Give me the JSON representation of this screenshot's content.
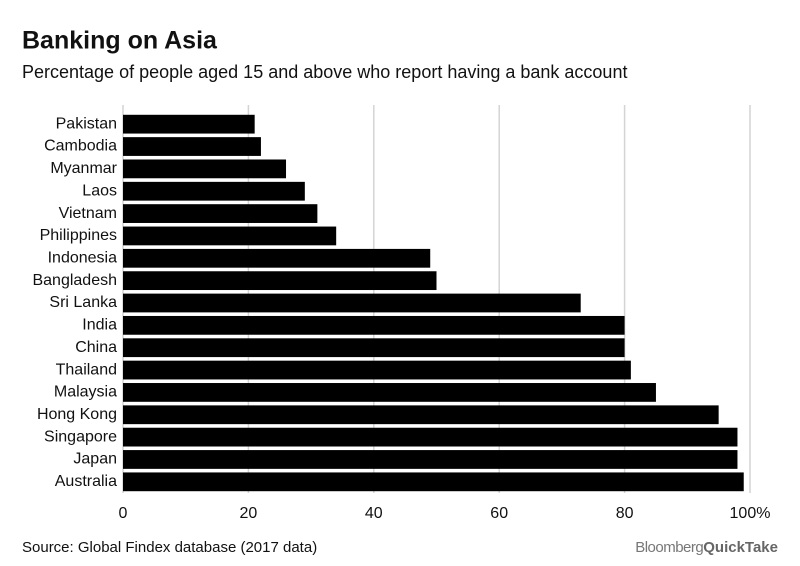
{
  "chart_data": {
    "type": "hbar",
    "title": "Banking on Asia",
    "subtitle": "Percentage of people aged 15 and above who report having a bank account",
    "categories": [
      "Pakistan",
      "Cambodia",
      "Myanmar",
      "Laos",
      "Vietnam",
      "Philippines",
      "Indonesia",
      "Bangladesh",
      "Sri Lanka",
      "India",
      "China",
      "Thailand",
      "Malaysia",
      "Hong Kong",
      "Singapore",
      "Japan",
      "Australia"
    ],
    "values": [
      21,
      22,
      26,
      29,
      31,
      34,
      49,
      50,
      73,
      80,
      80,
      81,
      85,
      95,
      98,
      98,
      99
    ],
    "color": "#000000",
    "xlim": [
      0,
      100
    ],
    "xticks": [
      0,
      20,
      40,
      60,
      80,
      {
        "value": 100,
        "label": "100%"
      }
    ],
    "grid": true,
    "source": "Source: Global Findex database (2017 data)"
  },
  "brand": {
    "first": "Bloomberg",
    "second": "QuickTake"
  }
}
